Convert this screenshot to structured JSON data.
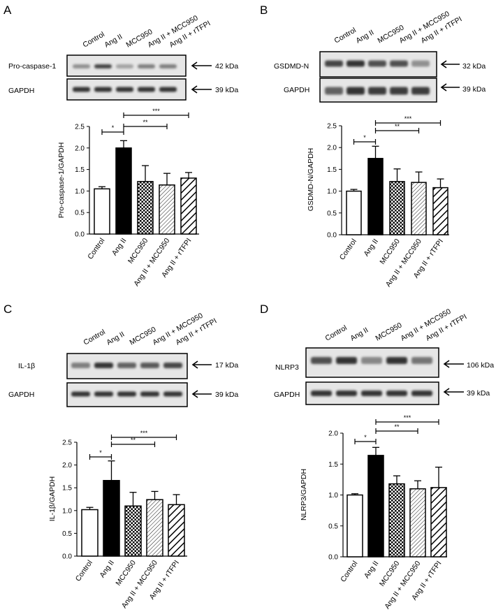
{
  "colors": {
    "background": "#ffffff",
    "control_bar": "#ffffff",
    "angii_bar": "#000000",
    "mcc950_pattern": "checker",
    "angii_mcc950_pattern": "fine-diagonal-hatch",
    "angii_rtfpi_pattern": "bold-diagonal-hatch",
    "blot_background": "#e6e6e6",
    "band": "#2a2a2a"
  },
  "lanes": [
    "Control",
    "Ang II",
    "MCC950",
    "Ang II + MCC950",
    "Ang II + rTFPI"
  ],
  "panels": [
    {
      "letter": "A",
      "blots": [
        {
          "protein": "Pro-caspase-1",
          "kda": "42 kDa"
        },
        {
          "protein": "GAPDH",
          "kda": "39 kDa"
        }
      ]
    },
    {
      "letter": "B",
      "blots": [
        {
          "protein": "GSDMD-N",
          "kda": "32 kDa"
        },
        {
          "protein": "GAPDH",
          "kda": "39 kDa"
        }
      ]
    },
    {
      "letter": "C",
      "blots": [
        {
          "protein": "IL-1β",
          "kda": "17 kDa"
        },
        {
          "protein": "GAPDH",
          "kda": "39 kDa"
        }
      ]
    },
    {
      "letter": "D",
      "blots": [
        {
          "protein": "NLRP3",
          "kda": "106 kDa"
        },
        {
          "protein": "GAPDH",
          "kda": "39 kDa"
        }
      ]
    }
  ],
  "chart_data": [
    {
      "panel": "A",
      "type": "bar",
      "categories": [
        "Control",
        "Ang II",
        "MCC950",
        "Ang II + MCC950",
        "Ang II + rTFPI"
      ],
      "values": [
        1.05,
        2.0,
        1.22,
        1.14,
        1.3
      ],
      "errors": [
        0.05,
        0.17,
        0.37,
        0.27,
        0.13
      ],
      "ylabel": "Pro-caspase-1/GAPDH",
      "ylim": [
        0,
        2.5
      ],
      "yticks": [
        0.0,
        0.5,
        1.0,
        1.5,
        2.0,
        2.5
      ],
      "significance": [
        {
          "from": 0,
          "to": 1,
          "label": "*"
        },
        {
          "from": 1,
          "to": 3,
          "label": "**"
        },
        {
          "from": 1,
          "to": 4,
          "label": "***"
        }
      ]
    },
    {
      "panel": "B",
      "type": "bar",
      "categories": [
        "Control",
        "Ang II",
        "MCC950",
        "Ang II + MCC950",
        "Ang II + rTFPI"
      ],
      "values": [
        1.0,
        1.75,
        1.22,
        1.2,
        1.08
      ],
      "errors": [
        0.04,
        0.28,
        0.29,
        0.24,
        0.2
      ],
      "ylabel": "GSDMD-N/GAPDH",
      "ylim": [
        0,
        2.5
      ],
      "yticks": [
        0.0,
        0.5,
        1.0,
        1.5,
        2.0,
        2.5
      ],
      "significance": [
        {
          "from": 0,
          "to": 1,
          "label": "*"
        },
        {
          "from": 1,
          "to": 3,
          "label": "**"
        },
        {
          "from": 1,
          "to": 4,
          "label": "***"
        }
      ]
    },
    {
      "panel": "C",
      "type": "bar",
      "categories": [
        "Control",
        "Ang II",
        "MCC950",
        "Ang II + MCC950",
        "Ang II + rTFPI"
      ],
      "values": [
        1.02,
        1.66,
        1.1,
        1.24,
        1.13
      ],
      "errors": [
        0.05,
        0.43,
        0.3,
        0.18,
        0.22
      ],
      "ylabel": "IL-1β/GAPDH",
      "ylim": [
        0,
        2.5
      ],
      "yticks": [
        0.0,
        0.5,
        1.0,
        1.5,
        2.0,
        2.5
      ],
      "significance": [
        {
          "from": 0,
          "to": 1,
          "label": "*"
        },
        {
          "from": 1,
          "to": 3,
          "label": "**"
        },
        {
          "from": 1,
          "to": 4,
          "label": "***"
        }
      ]
    },
    {
      "panel": "D",
      "type": "bar",
      "categories": [
        "Control",
        "Ang II",
        "MCC950",
        "Ang II + MCC950",
        "Ang II + rTFPI"
      ],
      "values": [
        1.0,
        1.64,
        1.18,
        1.1,
        1.12
      ],
      "errors": [
        0.02,
        0.13,
        0.13,
        0.13,
        0.33
      ],
      "ylabel": "NLRP3/GAPDH",
      "ylim": [
        0,
        2.0
      ],
      "yticks": [
        0.0,
        0.5,
        1.0,
        1.5,
        2.0
      ],
      "significance": [
        {
          "from": 0,
          "to": 1,
          "label": "*"
        },
        {
          "from": 1,
          "to": 3,
          "label": "**"
        },
        {
          "from": 1,
          "to": 4,
          "label": "***"
        }
      ]
    }
  ]
}
